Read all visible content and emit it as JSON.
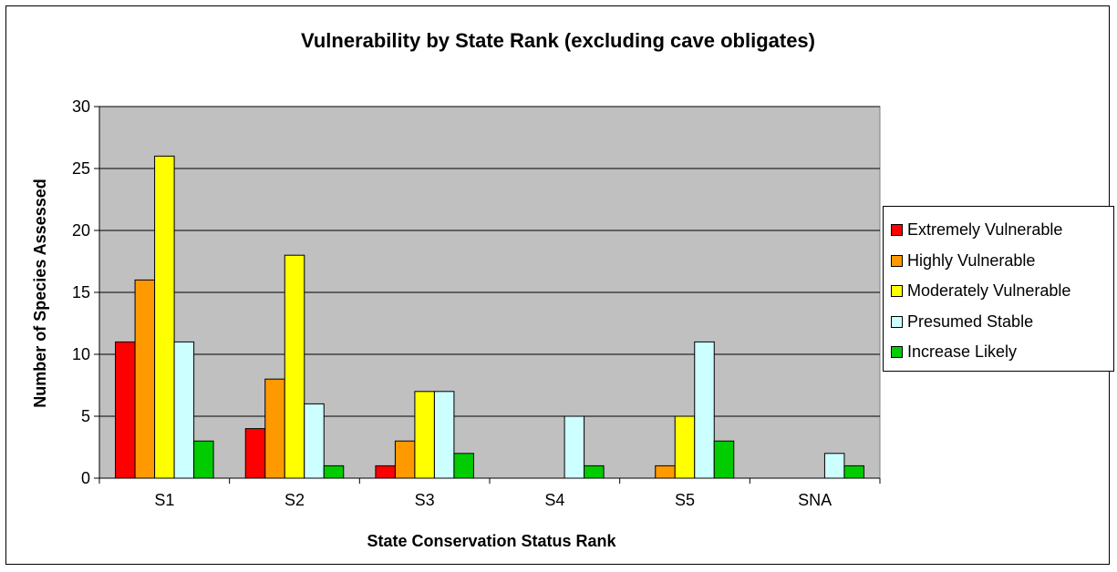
{
  "chart_data": {
    "type": "bar",
    "title": "Vulnerability by State Rank (excluding cave obligates)",
    "xlabel": "State Conservation Status Rank",
    "ylabel": "Number of Species Assessed",
    "ylim": [
      0,
      30
    ],
    "yticks": [
      0,
      5,
      10,
      15,
      20,
      25,
      30
    ],
    "grid": true,
    "legend_position": "right",
    "plot_background": "#C0C0C0",
    "categories": [
      "S1",
      "S2",
      "S3",
      "S4",
      "S5",
      "SNA"
    ],
    "series": [
      {
        "name": "Extremely Vulnerable",
        "color": "#FF0000",
        "values": [
          11,
          4,
          1,
          0,
          0,
          0
        ]
      },
      {
        "name": "Highly Vulnerable",
        "color": "#FF9900",
        "values": [
          16,
          8,
          3,
          0,
          1,
          0
        ]
      },
      {
        "name": "Moderately Vulnerable",
        "color": "#FFFF00",
        "values": [
          26,
          18,
          7,
          0,
          5,
          0
        ]
      },
      {
        "name": "Presumed Stable",
        "color": "#CCFFFF",
        "values": [
          11,
          6,
          7,
          5,
          11,
          2
        ]
      },
      {
        "name": "Increase Likely",
        "color": "#00CC00",
        "values": [
          3,
          1,
          2,
          1,
          3,
          1
        ]
      }
    ]
  }
}
